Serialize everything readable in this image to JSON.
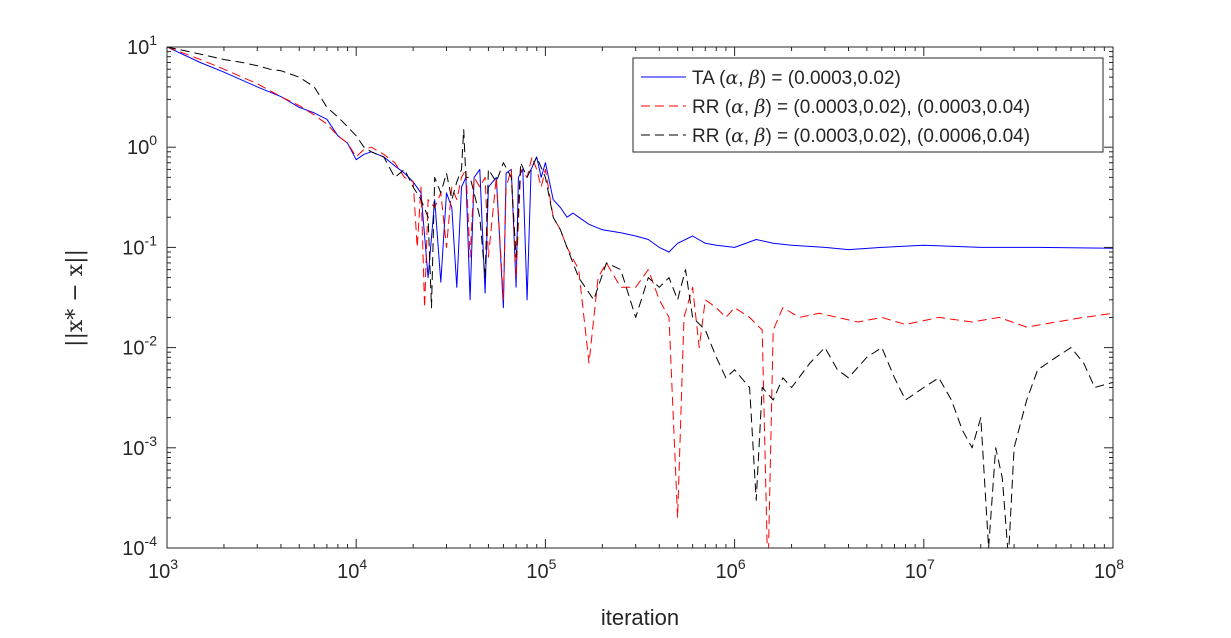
{
  "chart_data": {
    "type": "line",
    "title": "",
    "xlabel": "iteration",
    "ylabel": "||x* − x||",
    "xscale": "log",
    "yscale": "log",
    "xlim": [
      1000,
      100000000
    ],
    "ylim": [
      0.0001,
      10
    ],
    "x_ticks": [
      {
        "base": "10",
        "exp": "3"
      },
      {
        "base": "10",
        "exp": "4"
      },
      {
        "base": "10",
        "exp": "5"
      },
      {
        "base": "10",
        "exp": "6"
      },
      {
        "base": "10",
        "exp": "7"
      },
      {
        "base": "10",
        "exp": "8"
      }
    ],
    "y_ticks": [
      {
        "base": "10",
        "exp": "-4"
      },
      {
        "base": "10",
        "exp": "-3"
      },
      {
        "base": "10",
        "exp": "-2"
      },
      {
        "base": "10",
        "exp": "-1"
      },
      {
        "base": "10",
        "exp": "0"
      },
      {
        "base": "10",
        "exp": "1"
      }
    ],
    "grid": false,
    "legend_position": "top-right",
    "legend": [
      {
        "prefix": "TA (",
        "alpha": "α",
        "sep": ", ",
        "beta": "β",
        "suffix": ") = (0.0003,0.02)"
      },
      {
        "prefix": "RR (",
        "alpha": "α",
        "sep": ", ",
        "beta": "β",
        "suffix": ") = (0.0003,0.02), (0.0003,0.04)"
      },
      {
        "prefix": "RR (",
        "alpha": "α",
        "sep": ", ",
        "beta": "β",
        "suffix": ") = (0.0003,0.02), (0.0006,0.04)"
      }
    ],
    "series": [
      {
        "name": "TA (α, β) = (0.0003,0.02)",
        "color": "#0000ff",
        "dash": "solid",
        "points": [
          [
            1000,
            10
          ],
          [
            1500,
            7.0
          ],
          [
            2000,
            5.6
          ],
          [
            3000,
            4.0
          ],
          [
            4000,
            3.2
          ],
          [
            5000,
            2.5
          ],
          [
            6000,
            2.2
          ],
          [
            7000,
            1.9
          ],
          [
            8000,
            1.3
          ],
          [
            9000,
            1.1
          ],
          [
            10000,
            0.75
          ],
          [
            11000,
            0.85
          ],
          [
            12000,
            0.9
          ],
          [
            14000,
            0.8
          ],
          [
            16000,
            0.65
          ],
          [
            18000,
            0.55
          ],
          [
            20000,
            0.45
          ],
          [
            22000,
            0.35
          ],
          [
            24000,
            0.05
          ],
          [
            26000,
            0.3
          ],
          [
            28000,
            0.045
          ],
          [
            30000,
            0.35
          ],
          [
            32000,
            0.25
          ],
          [
            34000,
            0.04
          ],
          [
            36000,
            0.4
          ],
          [
            38000,
            0.5
          ],
          [
            40000,
            0.03
          ],
          [
            42000,
            0.5
          ],
          [
            45000,
            0.6
          ],
          [
            48000,
            0.035
          ],
          [
            50000,
            0.4
          ],
          [
            55000,
            0.5
          ],
          [
            60000,
            0.025
          ],
          [
            62000,
            0.55
          ],
          [
            66000,
            0.6
          ],
          [
            70000,
            0.04
          ],
          [
            72000,
            0.5
          ],
          [
            76000,
            0.6
          ],
          [
            80000,
            0.03
          ],
          [
            84000,
            0.6
          ],
          [
            90000,
            0.8
          ],
          [
            95000,
            0.5
          ],
          [
            100000,
            0.7
          ],
          [
            110000,
            0.3
          ],
          [
            120000,
            0.25
          ],
          [
            130000,
            0.2
          ],
          [
            140000,
            0.22
          ],
          [
            150000,
            0.2
          ],
          [
            170000,
            0.17
          ],
          [
            200000,
            0.15
          ],
          [
            250000,
            0.14
          ],
          [
            300000,
            0.13
          ],
          [
            350000,
            0.12
          ],
          [
            400000,
            0.1
          ],
          [
            450000,
            0.09
          ],
          [
            500000,
            0.11
          ],
          [
            600000,
            0.13
          ],
          [
            700000,
            0.11
          ],
          [
            800000,
            0.105
          ],
          [
            1000000,
            0.1
          ],
          [
            1300000,
            0.12
          ],
          [
            1600000,
            0.11
          ],
          [
            2000000,
            0.105
          ],
          [
            3000000,
            0.1
          ],
          [
            4000000,
            0.095
          ],
          [
            6000000,
            0.1
          ],
          [
            10000000,
            0.105
          ],
          [
            20000000,
            0.1
          ],
          [
            40000000,
            0.1
          ],
          [
            100000000,
            0.098
          ]
        ]
      },
      {
        "name": "RR (α, β) = (0.0003,0.02), (0.0003,0.04)",
        "color": "#ff0000",
        "dash": "dashed",
        "points": [
          [
            1000,
            10
          ],
          [
            1500,
            7.5
          ],
          [
            2000,
            6.0
          ],
          [
            3000,
            4.3
          ],
          [
            4000,
            3.2
          ],
          [
            5000,
            2.6
          ],
          [
            6000,
            2.1
          ],
          [
            7000,
            1.7
          ],
          [
            8000,
            1.3
          ],
          [
            9000,
            1.1
          ],
          [
            10000,
            0.8
          ],
          [
            11000,
            0.95
          ],
          [
            12000,
            1.0
          ],
          [
            14000,
            0.85
          ],
          [
            16000,
            0.7
          ],
          [
            18000,
            0.5
          ],
          [
            20000,
            0.45
          ],
          [
            21000,
            0.1
          ],
          [
            22000,
            0.4
          ],
          [
            23000,
            0.025
          ],
          [
            24000,
            0.3
          ],
          [
            26000,
            0.25
          ],
          [
            28000,
            0.35
          ],
          [
            30000,
            0.1
          ],
          [
            32000,
            0.4
          ],
          [
            34000,
            0.3
          ],
          [
            36000,
            0.5
          ],
          [
            38000,
            0.6
          ],
          [
            40000,
            0.08
          ],
          [
            42000,
            0.5
          ],
          [
            45000,
            0.4
          ],
          [
            48000,
            0.5
          ],
          [
            50000,
            0.08
          ],
          [
            55000,
            0.5
          ],
          [
            60000,
            0.03
          ],
          [
            62000,
            0.4
          ],
          [
            66000,
            0.6
          ],
          [
            70000,
            0.05
          ],
          [
            74000,
            0.6
          ],
          [
            80000,
            0.5
          ],
          [
            85000,
            0.8
          ],
          [
            90000,
            0.6
          ],
          [
            95000,
            0.4
          ],
          [
            100000,
            0.6
          ],
          [
            110000,
            0.2
          ],
          [
            120000,
            0.15
          ],
          [
            130000,
            0.1
          ],
          [
            150000,
            0.06
          ],
          [
            170000,
            0.007
          ],
          [
            190000,
            0.05
          ],
          [
            210000,
            0.07
          ],
          [
            250000,
            0.04
          ],
          [
            300000,
            0.04
          ],
          [
            350000,
            0.06
          ],
          [
            400000,
            0.03
          ],
          [
            450000,
            0.02
          ],
          [
            500000,
            0.0002
          ],
          [
            540000,
            0.02
          ],
          [
            600000,
            0.04
          ],
          [
            650000,
            0.01
          ],
          [
            700000,
            0.03
          ],
          [
            800000,
            0.025
          ],
          [
            900000,
            0.02
          ],
          [
            1000000,
            0.025
          ],
          [
            1200000,
            0.02
          ],
          [
            1400000,
            0.015
          ],
          [
            1500000,
            5e-05
          ],
          [
            1600000,
            0.015
          ],
          [
            1800000,
            0.025
          ],
          [
            2200000,
            0.02
          ],
          [
            2800000,
            0.022
          ],
          [
            3500000,
            0.02
          ],
          [
            4500000,
            0.018
          ],
          [
            6000000,
            0.02
          ],
          [
            8000000,
            0.017
          ],
          [
            12000000,
            0.02
          ],
          [
            18000000,
            0.018
          ],
          [
            25000000,
            0.02
          ],
          [
            35000000,
            0.016
          ],
          [
            50000000,
            0.018
          ],
          [
            70000000,
            0.02
          ],
          [
            100000000,
            0.022
          ]
        ]
      },
      {
        "name": "RR (α, β) = (0.0003,0.02), (0.0006,0.04)",
        "color": "#000000",
        "dash": "dashed",
        "points": [
          [
            1000,
            10
          ],
          [
            1500,
            8.5
          ],
          [
            2000,
            7.5
          ],
          [
            2500,
            7.0
          ],
          [
            3000,
            6.5
          ],
          [
            3500,
            6.0
          ],
          [
            4000,
            5.8
          ],
          [
            5000,
            5.0
          ],
          [
            6000,
            4.0
          ],
          [
            7000,
            2.5
          ],
          [
            8000,
            2.0
          ],
          [
            9000,
            1.6
          ],
          [
            10000,
            1.3
          ],
          [
            11000,
            1.0
          ],
          [
            12000,
            0.9
          ],
          [
            14000,
            0.8
          ],
          [
            16000,
            0.5
          ],
          [
            18000,
            0.6
          ],
          [
            20000,
            0.4
          ],
          [
            22000,
            0.3
          ],
          [
            24000,
            0.2
          ],
          [
            25000,
            0.025
          ],
          [
            26000,
            0.5
          ],
          [
            28000,
            0.35
          ],
          [
            30000,
            0.55
          ],
          [
            32000,
            0.3
          ],
          [
            34000,
            0.45
          ],
          [
            36000,
            0.6
          ],
          [
            37000,
            1.5
          ],
          [
            38000,
            0.5
          ],
          [
            40000,
            0.5
          ],
          [
            42000,
            0.35
          ],
          [
            45000,
            0.2
          ],
          [
            48000,
            0.05
          ],
          [
            50000,
            0.6
          ],
          [
            55000,
            0.45
          ],
          [
            60000,
            0.7
          ],
          [
            66000,
            0.5
          ],
          [
            70000,
            0.08
          ],
          [
            74000,
            0.7
          ],
          [
            80000,
            0.5
          ],
          [
            90000,
            0.8
          ],
          [
            100000,
            0.5
          ],
          [
            110000,
            0.2
          ],
          [
            120000,
            0.15
          ],
          [
            130000,
            0.1
          ],
          [
            150000,
            0.05
          ],
          [
            180000,
            0.03
          ],
          [
            210000,
            0.07
          ],
          [
            250000,
            0.06
          ],
          [
            300000,
            0.02
          ],
          [
            350000,
            0.05
          ],
          [
            400000,
            0.04
          ],
          [
            450000,
            0.05
          ],
          [
            500000,
            0.03
          ],
          [
            550000,
            0.06
          ],
          [
            600000,
            0.02
          ],
          [
            700000,
            0.015
          ],
          [
            800000,
            0.008
          ],
          [
            900000,
            0.005
          ],
          [
            1000000,
            0.006
          ],
          [
            1200000,
            0.004
          ],
          [
            1300000,
            0.0003
          ],
          [
            1400000,
            0.004
          ],
          [
            1600000,
            0.003
          ],
          [
            1800000,
            0.005
          ],
          [
            2000000,
            0.004
          ],
          [
            2500000,
            0.007
          ],
          [
            3000000,
            0.01
          ],
          [
            3500000,
            0.006
          ],
          [
            4000000,
            0.005
          ],
          [
            5000000,
            0.008
          ],
          [
            6000000,
            0.01
          ],
          [
            7000000,
            0.005
          ],
          [
            8000000,
            0.003
          ],
          [
            10000000,
            0.004
          ],
          [
            12000000,
            0.005
          ],
          [
            14000000,
            0.003
          ],
          [
            16000000,
            0.0015
          ],
          [
            18000000,
            0.001
          ],
          [
            20000000,
            0.002
          ],
          [
            22000000,
            0.0001
          ],
          [
            24000000,
            0.001
          ],
          [
            26000000,
            0.0005
          ],
          [
            28000000,
            8e-05
          ],
          [
            30000000,
            0.001
          ],
          [
            35000000,
            0.003
          ],
          [
            40000000,
            0.006
          ],
          [
            50000000,
            0.008
          ],
          [
            60000000,
            0.01
          ],
          [
            70000000,
            0.007
          ],
          [
            80000000,
            0.004
          ],
          [
            100000000,
            0.0045
          ]
        ]
      }
    ]
  }
}
